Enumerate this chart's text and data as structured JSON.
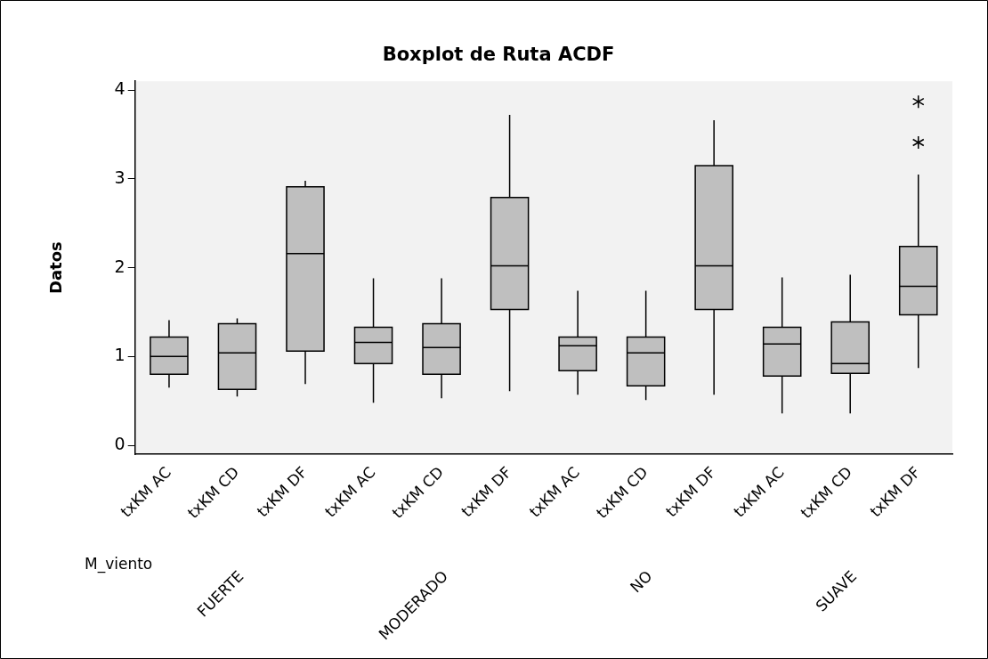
{
  "chart_data": {
    "type": "box",
    "title": "Boxplot de Ruta ACDF",
    "ylabel": "Datos",
    "categories": [
      "txKM AC",
      "txKM CD",
      "txKM DF",
      "txKM AC",
      "txKM CD",
      "txKM DF",
      "txKM AC",
      "txKM CD",
      "txKM DF",
      "txKM AC",
      "txKM CD",
      "txKM DF"
    ],
    "boxes": [
      {
        "low": 0.65,
        "q1": 0.8,
        "median": 1.0,
        "q3": 1.22,
        "high": 1.41
      },
      {
        "low": 0.55,
        "q1": 0.63,
        "median": 1.04,
        "q3": 1.37,
        "high": 1.43
      },
      {
        "low": 0.69,
        "q1": 1.06,
        "median": 2.16,
        "q3": 2.91,
        "high": 2.98
      },
      {
        "low": 0.48,
        "q1": 0.92,
        "median": 1.16,
        "q3": 1.33,
        "high": 1.88
      },
      {
        "low": 0.53,
        "q1": 0.8,
        "median": 1.1,
        "q3": 1.37,
        "high": 1.88
      },
      {
        "low": 0.61,
        "q1": 1.53,
        "median": 2.02,
        "q3": 2.79,
        "high": 3.72
      },
      {
        "low": 0.57,
        "q1": 0.84,
        "median": 1.12,
        "q3": 1.22,
        "high": 1.74
      },
      {
        "low": 0.51,
        "q1": 0.67,
        "median": 1.04,
        "q3": 1.22,
        "high": 1.74
      },
      {
        "low": 0.57,
        "q1": 1.53,
        "median": 2.02,
        "q3": 3.15,
        "high": 3.66
      },
      {
        "low": 0.36,
        "q1": 0.78,
        "median": 1.14,
        "q3": 1.33,
        "high": 1.89
      },
      {
        "low": 0.36,
        "q1": 0.81,
        "median": 0.92,
        "q3": 1.39,
        "high": 1.92
      },
      {
        "low": 0.87,
        "q1": 1.47,
        "median": 1.79,
        "q3": 2.24,
        "high": 3.05,
        "outliers": [
          3.87,
          3.41
        ]
      }
    ],
    "color": "#bfbfbf",
    "ylim": [
      -0.1,
      4.1
    ],
    "yticks": [
      0,
      1,
      2,
      3,
      4
    ],
    "grid": false,
    "legend": false,
    "marker": "star",
    "annotations": [
      "M_viento",
      "FUERTE",
      "MODERADO",
      "NO",
      "SUAVE"
    ]
  }
}
